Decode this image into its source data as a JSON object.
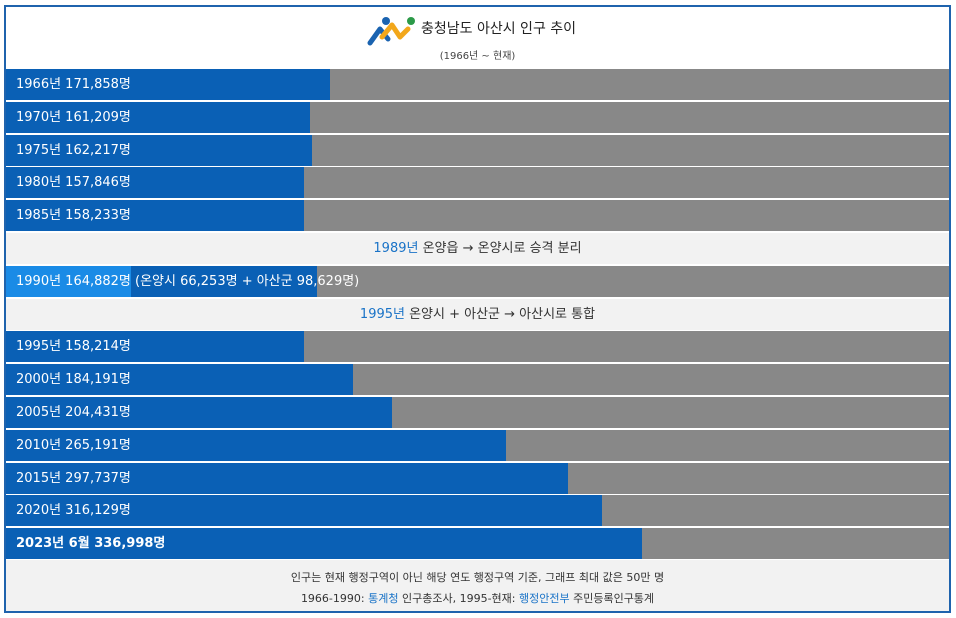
{
  "header": {
    "title": "충청남도 아산시 인구 추이",
    "subtitle": "(1966년 ~ 현재)",
    "logo_colors": [
      "#2c9a48",
      "#f2a71b",
      "#1a63b0"
    ]
  },
  "colors": {
    "bar": "#0a60b5",
    "highlight": "#1a8be6",
    "track": "#888888",
    "note_bg": "#f2f2f2",
    "link": "#1a73c7"
  },
  "chart_data": {
    "type": "bar",
    "orientation": "horizontal",
    "max": 500000,
    "rows": [
      {
        "kind": "bar",
        "label": "1966년 171,858명",
        "value": 171858
      },
      {
        "kind": "bar",
        "label": "1970년 161,209명",
        "value": 161209
      },
      {
        "kind": "bar",
        "label": "1975년 162,217명",
        "value": 162217
      },
      {
        "kind": "bar",
        "label": "1980년 157,846명",
        "value": 157846
      },
      {
        "kind": "bar",
        "label": "1985년 158,233명",
        "value": 158233
      },
      {
        "kind": "note",
        "year": "1989년",
        "text": " 온양읍 → 온양시로 승격 분리"
      },
      {
        "kind": "split",
        "label": "1990년 164,882명 (온양시 66,253명 + 아산군 98,629명)",
        "value": 164882,
        "parts": [
          66253,
          98629
        ]
      },
      {
        "kind": "note",
        "year": "1995년",
        "text": " 온양시 + 아산군 → 아산시로 통합"
      },
      {
        "kind": "bar",
        "label": "1995년 158,214명",
        "value": 158214
      },
      {
        "kind": "bar",
        "label": "2000년 184,191명",
        "value": 184191
      },
      {
        "kind": "bar",
        "label": "2005년 204,431명",
        "value": 204431
      },
      {
        "kind": "bar",
        "label": "2010년 265,191명",
        "value": 265191
      },
      {
        "kind": "bar",
        "label": "2015년 297,737명",
        "value": 297737
      },
      {
        "kind": "bar",
        "label": "2020년 316,129명",
        "value": 316129
      },
      {
        "kind": "bar",
        "label": "2023년 6월 336,998명",
        "value": 336998,
        "bold": true
      }
    ]
  },
  "footer": {
    "line1": "인구는 현재 행정구역이 아닌 해당 연도 행정구역 기준, 그래프 최대 값은 50만 명",
    "line2_a": "1966-1990: ",
    "line2_link1": "통계청",
    "line2_b": " 인구총조사, 1995-현재: ",
    "line2_link2": "행정안전부",
    "line2_c": " 주민등록인구통계"
  }
}
